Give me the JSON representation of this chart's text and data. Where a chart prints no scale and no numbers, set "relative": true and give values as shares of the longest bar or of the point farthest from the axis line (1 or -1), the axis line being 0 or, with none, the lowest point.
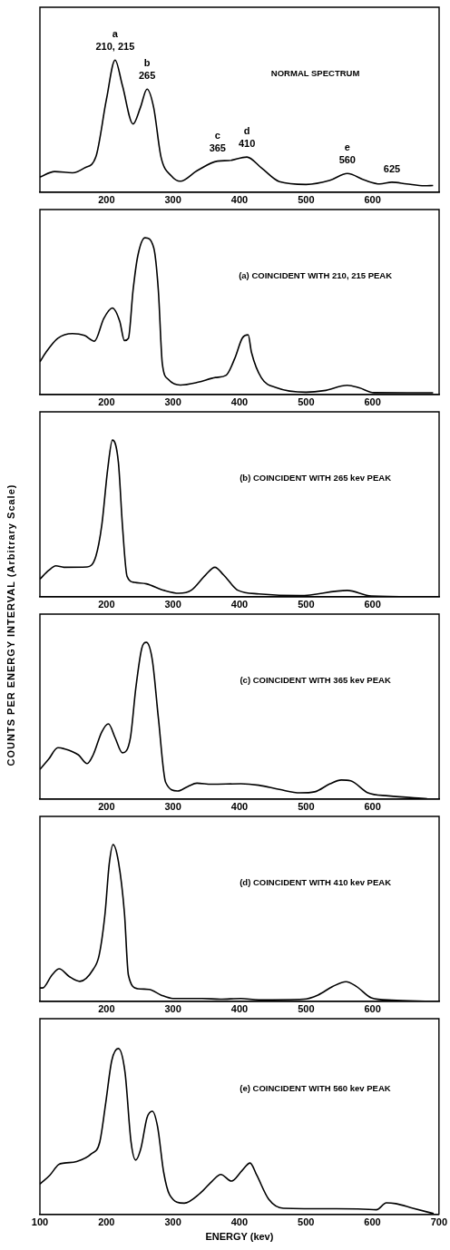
{
  "chart_data": [
    {
      "type": "line",
      "title": "NORMAL SPECTRUM",
      "relative": true,
      "xlim": [
        100,
        700
      ],
      "xticks": [
        200,
        300,
        400,
        500,
        600
      ],
      "grid": false,
      "x": [
        100,
        122,
        149,
        167,
        184,
        200,
        213,
        224,
        240,
        251,
        261,
        271,
        282,
        298,
        311,
        336,
        367,
        384,
        411,
        433,
        460,
        500,
        536,
        562,
        589,
        611,
        629,
        651,
        678,
        691
      ],
      "series": [
        {
          "color": "#000000",
          "values": [
            0.114,
            0.156,
            0.146,
            0.183,
            0.266,
            0.703,
            1,
            0.807,
            0.516,
            0.64,
            0.78,
            0.64,
            0.266,
            0.121,
            0.083,
            0.162,
            0.235,
            0.239,
            0.266,
            0.183,
            0.079,
            0.058,
            0.089,
            0.141,
            0.089,
            0.062,
            0.075,
            0.062,
            0.048,
            0.05
          ]
        }
      ],
      "annotations": [
        {
          "text": "a",
          "x": 213,
          "y": 1
        },
        {
          "text": "210, 215",
          "x": 213,
          "y": 1
        },
        {
          "text": "b",
          "x": 261,
          "y": 0.78
        },
        {
          "text": "265",
          "x": 261,
          "y": 0.78
        },
        {
          "text": "c",
          "x": 367,
          "y": 0.235
        },
        {
          "text": "365",
          "x": 367,
          "y": 0.235
        },
        {
          "text": "d",
          "x": 411,
          "y": 0.266
        },
        {
          "text": "410",
          "x": 411,
          "y": 0.266
        },
        {
          "text": "e",
          "x": 562,
          "y": 0.141
        },
        {
          "text": "560",
          "x": 562,
          "y": 0.141
        },
        {
          "text": "625",
          "x": 629,
          "y": 0.075
        }
      ]
    },
    {
      "type": "line",
      "title": "(a) COINCIDENT WITH 210, 215 PEAK",
      "relative": true,
      "xlim": [
        100,
        700
      ],
      "xticks": [
        200,
        300,
        400,
        500,
        600
      ],
      "grid": false,
      "x": [
        100,
        109,
        127,
        149,
        167,
        182,
        196,
        209,
        220,
        227,
        233,
        240,
        247,
        258,
        271,
        278,
        284,
        293,
        311,
        338,
        364,
        380,
        393,
        404,
        413,
        418,
        433,
        456,
        500,
        527,
        562,
        580,
        602,
        691
      ],
      "series": [
        {
          "color": "#000000",
          "values": [
            0.208,
            0.268,
            0.358,
            0.388,
            0.376,
            0.34,
            0.485,
            0.552,
            0.467,
            0.344,
            0.358,
            0.665,
            0.882,
            1,
            0.937,
            0.665,
            0.195,
            0.096,
            0.06,
            0.078,
            0.108,
            0.123,
            0.231,
            0.358,
            0.38,
            0.268,
            0.105,
            0.042,
            0.014,
            0.024,
            0.058,
            0.042,
            0.011,
            0.01
          ]
        }
      ]
    },
    {
      "type": "line",
      "title": "(b) COINCIDENT WITH 265 kev PEAK",
      "relative": true,
      "xlim": [
        100,
        700
      ],
      "xticks": [
        200,
        300,
        400,
        500,
        600
      ],
      "grid": false,
      "x": [
        100,
        113,
        124,
        136,
        171,
        184,
        193,
        202,
        209,
        218,
        224,
        231,
        242,
        260,
        287,
        309,
        327,
        349,
        363,
        376,
        398,
        429,
        491,
        562,
        598,
        660,
        678
      ],
      "series": [
        {
          "color": "#000000",
          "values": [
            0.112,
            0.167,
            0.197,
            0.188,
            0.19,
            0.257,
            0.457,
            0.819,
            1,
            0.855,
            0.457,
            0.13,
            0.091,
            0.082,
            0.04,
            0.022,
            0.04,
            0.139,
            0.188,
            0.139,
            0.04,
            0.018,
            0.007,
            0.04,
            0.004,
            0,
            0
          ]
        }
      ]
    },
    {
      "type": "line",
      "title": "(c) COINCIDENT WITH 365 kev PEAK",
      "ylabel": "COUNTS PER ENERGY INTERVAL (Arbitrary Scale)",
      "relative": true,
      "xlim": [
        100,
        700
      ],
      "xticks": [
        200,
        300,
        400,
        500,
        600
      ],
      "grid": false,
      "x": [
        100,
        113,
        127,
        136,
        158,
        171,
        180,
        193,
        203,
        213,
        224,
        236,
        244,
        253,
        260,
        269,
        278,
        289,
        307,
        322,
        336,
        358,
        402,
        429,
        460,
        491,
        513,
        536,
        553,
        567,
        593,
        624,
        682
      ],
      "series": [
        {
          "color": "#000000",
          "values": [
            0.189,
            0.253,
            0.327,
            0.321,
            0.281,
            0.226,
            0.281,
            0.428,
            0.479,
            0.391,
            0.295,
            0.391,
            0.703,
            0.96,
            1,
            0.886,
            0.519,
            0.106,
            0.051,
            0.079,
            0.101,
            0.094,
            0.097,
            0.088,
            0.061,
            0.039,
            0.046,
            0.097,
            0.121,
            0.116,
            0.039,
            0.02,
            0.002
          ]
        }
      ]
    },
    {
      "type": "line",
      "title": "(d) COINCIDENT WITH 410 kev PEAK",
      "relative": true,
      "xlim": [
        100,
        700
      ],
      "xticks": [
        200,
        300,
        400,
        500,
        600
      ],
      "grid": false,
      "x": [
        100,
        104,
        118,
        129,
        144,
        160,
        180,
        189,
        198,
        204,
        210,
        218,
        227,
        233,
        247,
        264,
        282,
        300,
        344,
        371,
        402,
        429,
        496,
        518,
        540,
        560,
        576,
        598,
        629,
        687
      ],
      "series": [
        {
          "color": "#000000",
          "values": [
            0.085,
            0.085,
            0.167,
            0.207,
            0.158,
            0.127,
            0.203,
            0.293,
            0.565,
            0.87,
            1,
            0.891,
            0.565,
            0.167,
            0.08,
            0.076,
            0.04,
            0.018,
            0.018,
            0.013,
            0.018,
            0.009,
            0.013,
            0.04,
            0.094,
            0.125,
            0.094,
            0.022,
            0.007,
            0
          ]
        }
      ]
    },
    {
      "type": "line",
      "title": "(e) COINCIDENT WITH 560 kev PEAK",
      "xlabel": "ENERGY (kev)",
      "relative": true,
      "xlim": [
        100,
        700
      ],
      "xticks": [
        100,
        200,
        300,
        400,
        500,
        600,
        700
      ],
      "grid": false,
      "x": [
        100,
        115,
        128,
        137,
        155,
        177,
        190,
        199,
        208,
        218,
        228,
        237,
        244,
        252,
        261,
        269,
        277,
        286,
        295,
        317,
        341,
        359,
        372,
        388,
        404,
        416,
        426,
        444,
        466,
        546,
        586,
        606,
        621,
        635,
        661,
        692
      ],
      "series": [
        {
          "color": "#000000",
          "values": [
            0.182,
            0.236,
            0.3,
            0.309,
            0.318,
            0.364,
            0.436,
            0.673,
            0.927,
            1,
            0.855,
            0.436,
            0.327,
            0.4,
            0.582,
            0.622,
            0.527,
            0.255,
            0.118,
            0.067,
            0.127,
            0.2,
            0.24,
            0.2,
            0.264,
            0.309,
            0.236,
            0.091,
            0.036,
            0.033,
            0.031,
            0.027,
            0.069,
            0.064,
            0.036,
            0.004
          ]
        }
      ]
    }
  ]
}
